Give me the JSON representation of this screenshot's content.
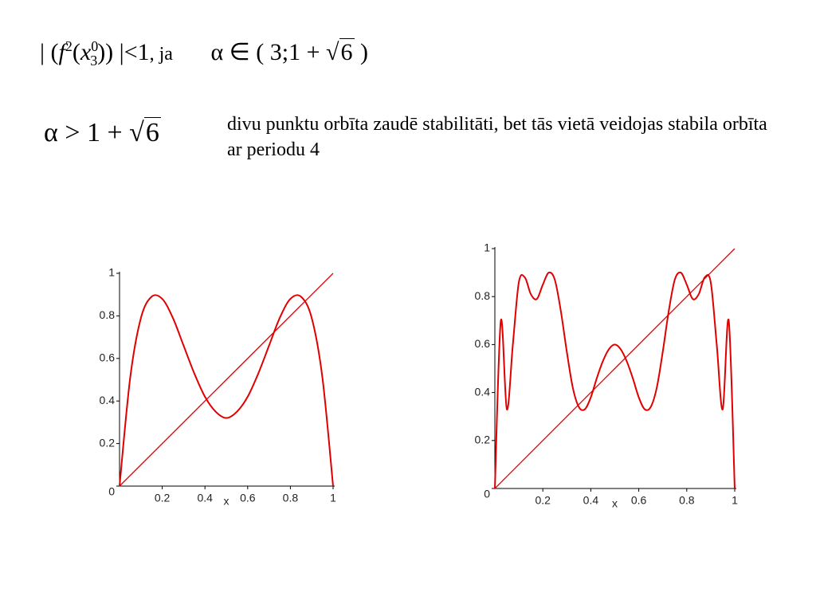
{
  "condition": {
    "f": "f",
    "f_exp": "2",
    "x": "x",
    "x_sup": "0",
    "x_sub": "3",
    "rhs": "<1",
    "join": ", ja",
    "set_open": "α ∈ ( 3;1 + ",
    "set_root": "6",
    "set_close": ")"
  },
  "threshold": {
    "lhs": "α > 1 + ",
    "root": "6"
  },
  "description": "divu punktu orbīta zaudē stabilitāti, bet tās vietā veidojas stabila orbīta ar periodu 4",
  "chart_data": [
    {
      "type": "line",
      "xlabel": "x",
      "xlim": [
        0,
        1
      ],
      "ylim": [
        0,
        1
      ],
      "xticks": [
        0.2,
        0.4,
        0.6,
        0.8,
        1
      ],
      "yticks": [
        0,
        0.2,
        0.4,
        0.6,
        0.8,
        1
      ],
      "series": [
        {
          "color": "#e00000",
          "x": [
            0,
            0.05,
            0.1,
            0.15,
            0.2,
            0.25,
            0.3,
            0.35,
            0.4,
            0.45,
            0.5,
            0.55,
            0.6,
            0.65,
            0.7,
            0.75,
            0.8,
            0.85,
            0.9,
            0.95,
            1
          ],
          "values": [
            0,
            0.51,
            0.79,
            0.89,
            0.88,
            0.79,
            0.66,
            0.53,
            0.42,
            0.35,
            0.32,
            0.35,
            0.42,
            0.53,
            0.66,
            0.79,
            0.88,
            0.89,
            0.79,
            0.51,
            0
          ]
        },
        {
          "color": "#e00000",
          "x": [
            0,
            1
          ],
          "values": [
            0,
            1
          ]
        }
      ]
    },
    {
      "type": "line",
      "xlabel": "x",
      "xlim": [
        0,
        1
      ],
      "ylim": [
        0,
        1
      ],
      "xticks": [
        0.2,
        0.4,
        0.6,
        0.8,
        1
      ],
      "yticks": [
        0,
        0.2,
        0.4,
        0.6,
        0.8,
        1
      ],
      "series": [
        {
          "color": "#e00000",
          "x": [
            0,
            0.025,
            0.05,
            0.075,
            0.1,
            0.125,
            0.15,
            0.175,
            0.2,
            0.225,
            0.25,
            0.275,
            0.3,
            0.325,
            0.35,
            0.375,
            0.4,
            0.425,
            0.45,
            0.475,
            0.5,
            0.525,
            0.55,
            0.575,
            0.6,
            0.625,
            0.65,
            0.675,
            0.7,
            0.725,
            0.75,
            0.775,
            0.8,
            0.825,
            0.85,
            0.875,
            0.9,
            0.925,
            0.95,
            0.975,
            1
          ],
          "values": [
            0,
            0.7,
            0.33,
            0.6,
            0.86,
            0.88,
            0.81,
            0.79,
            0.85,
            0.9,
            0.87,
            0.74,
            0.57,
            0.42,
            0.34,
            0.33,
            0.38,
            0.46,
            0.53,
            0.58,
            0.6,
            0.58,
            0.53,
            0.46,
            0.38,
            0.33,
            0.34,
            0.42,
            0.57,
            0.74,
            0.87,
            0.9,
            0.85,
            0.79,
            0.81,
            0.88,
            0.86,
            0.6,
            0.33,
            0.7,
            0
          ]
        },
        {
          "color": "#e00000",
          "x": [
            0,
            1
          ],
          "values": [
            0,
            1
          ]
        }
      ]
    }
  ]
}
